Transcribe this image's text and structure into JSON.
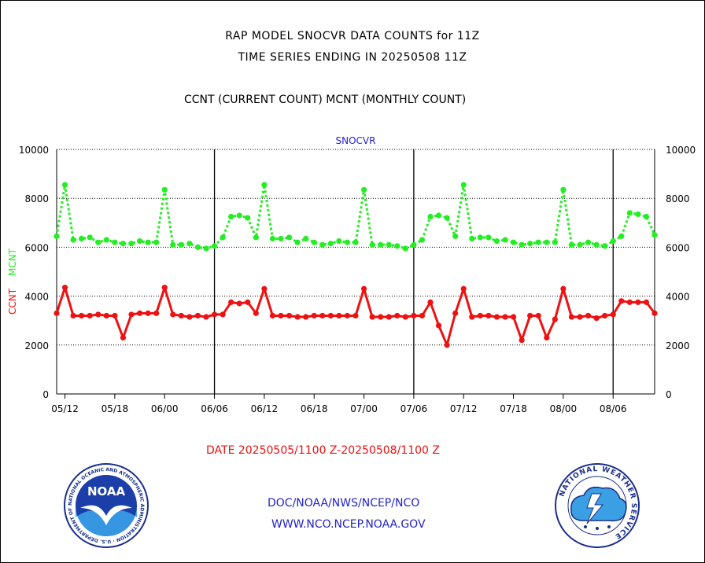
{
  "header": {
    "line1": "RAP MODEL SNOCVR DATA COUNTS for 11Z",
    "line2": "TIME SERIES ENDING IN 20250508 11Z",
    "line3": "CCNT (CURRENT COUNT) MCNT (MONTHLY COUNT)"
  },
  "footer": {
    "date_range": "DATE 20250505/1100 Z-20250508/1100 Z",
    "org": "DOC/NOAA/NWS/NCEP/NCO",
    "url": "WWW.NCO.NCEP.NOAA.GOV",
    "noaa_logo_text": "NOAA",
    "noaa_ring_text": "NATIONAL OCEANIC AND ATMOSPHERIC ADMINISTRATION · U.S. DEPARTMENT OF COMMERCE",
    "nws_ring_text": "NATIONAL WEATHER SERVICE"
  },
  "colors": {
    "ccnt": "#ee1111",
    "mcnt": "#22ee22",
    "title_blue": "#2222cc"
  },
  "chart_data": {
    "type": "line",
    "title": "SNOCVR",
    "ylabel_ccnt": "CCNT",
    "ylabel_mcnt": "MCNT",
    "ylim": [
      0,
      10000
    ],
    "yticks": [
      0,
      2000,
      4000,
      6000,
      8000,
      10000
    ],
    "xtick_labels": [
      "05/12",
      "05/18",
      "06/00",
      "06/06",
      "06/12",
      "06/18",
      "07/00",
      "07/06",
      "07/12",
      "07/18",
      "08/00",
      "08/06"
    ],
    "xtick_index": [
      1,
      7,
      13,
      19,
      25,
      31,
      37,
      43,
      49,
      55,
      61,
      67
    ],
    "day_boundaries_index": [
      19,
      43,
      67
    ],
    "grid": true,
    "series": [
      {
        "name": "MCNT",
        "style": "dotted",
        "values": [
          6450,
          8550,
          6300,
          6350,
          6400,
          6200,
          6300,
          6200,
          6150,
          6150,
          6250,
          6200,
          6200,
          8350,
          6100,
          6100,
          6150,
          6000,
          5950,
          6050,
          6400,
          7250,
          7300,
          7200,
          6400,
          8550,
          6350,
          6350,
          6400,
          6200,
          6350,
          6200,
          6100,
          6150,
          6250,
          6200,
          6200,
          8350,
          6100,
          6100,
          6100,
          6050,
          5950,
          6100,
          6300,
          7250,
          7300,
          7200,
          6450,
          8550,
          6350,
          6400,
          6400,
          6250,
          6300,
          6200,
          6100,
          6150,
          6200,
          6200,
          6200,
          8350,
          6100,
          6100,
          6200,
          6100,
          6050,
          6250,
          6450,
          7400,
          7350,
          7250,
          6500
        ]
      },
      {
        "name": "CCNT",
        "style": "solid",
        "values": [
          3300,
          4350,
          3200,
          3200,
          3200,
          3250,
          3200,
          3200,
          2300,
          3250,
          3300,
          3300,
          3300,
          4350,
          3250,
          3200,
          3150,
          3200,
          3150,
          3250,
          3250,
          3750,
          3700,
          3750,
          3300,
          4300,
          3200,
          3200,
          3200,
          3150,
          3150,
          3200,
          3200,
          3200,
          3200,
          3200,
          3200,
          4300,
          3150,
          3150,
          3150,
          3200,
          3150,
          3200,
          3200,
          3750,
          2800,
          2000,
          3300,
          4300,
          3150,
          3200,
          3200,
          3150,
          3150,
          3150,
          2200,
          3200,
          3200,
          2300,
          3050,
          4300,
          3150,
          3150,
          3200,
          3100,
          3200,
          3250,
          3800,
          3750,
          3750,
          3750,
          3300
        ]
      }
    ]
  }
}
